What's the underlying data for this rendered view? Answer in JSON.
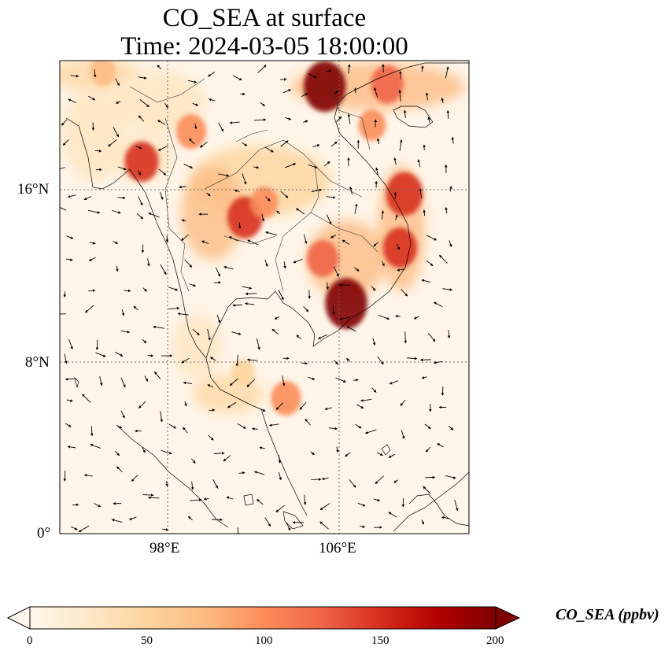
{
  "figure": {
    "title_line1": "CO_SEA at surface",
    "title_line2": "Time: 2024-03-05 18:00:00"
  },
  "axes": {
    "lat_ticks": [
      "16°N",
      "8°N",
      "0°"
    ],
    "lon_ticks": [
      "98°E",
      "106°E"
    ]
  },
  "colorbar": {
    "label": "CO_SEA (ppbv)",
    "ticks": [
      "0",
      "50",
      "100",
      "150",
      "200"
    ],
    "min": 0,
    "max": 200,
    "colormap": "OrRd",
    "extend": "both"
  },
  "map": {
    "lon_range": [
      93,
      112
    ],
    "lat_range": [
      0,
      22
    ],
    "gridlines": "dotted",
    "background_color": "#fff5e8",
    "hotspot_color": "#7f0000"
  },
  "chart_data": {
    "type": "heatmap",
    "title": "CO_SEA at surface",
    "subtitle": "Time: 2024-03-05 18:00:00",
    "xlabel": "",
    "ylabel": "",
    "x_ticks": [
      "98°E",
      "106°E"
    ],
    "y_ticks": [
      "16°N",
      "8°N",
      "0°"
    ],
    "colorbar_range": [
      0,
      200
    ],
    "hotspots": [
      {
        "lon": 106.3,
        "lat": 10.7,
        "value": 200
      },
      {
        "lon": 105.3,
        "lat": 20.8,
        "value": 200
      },
      {
        "lon": 108.8,
        "lat": 13.3,
        "value": 140
      },
      {
        "lon": 109.0,
        "lat": 15.8,
        "value": 160
      },
      {
        "lon": 108.2,
        "lat": 20.9,
        "value": 130
      },
      {
        "lon": 101.6,
        "lat": 14.7,
        "value": 150
      },
      {
        "lon": 96.8,
        "lat": 17.3,
        "value": 140
      },
      {
        "lon": 99.1,
        "lat": 18.7,
        "value": 110
      },
      {
        "lon": 105.2,
        "lat": 12.8,
        "value": 120
      },
      {
        "lon": 102.5,
        "lat": 15.4,
        "value": 90
      },
      {
        "lon": 107.5,
        "lat": 19.0,
        "value": 90
      },
      {
        "lon": 103.5,
        "lat": 6.3,
        "value": 110
      },
      {
        "lon": 101.5,
        "lat": 7.5,
        "value": 60
      },
      {
        "lon": 95.0,
        "lat": 21.5,
        "value": 80
      }
    ]
  }
}
